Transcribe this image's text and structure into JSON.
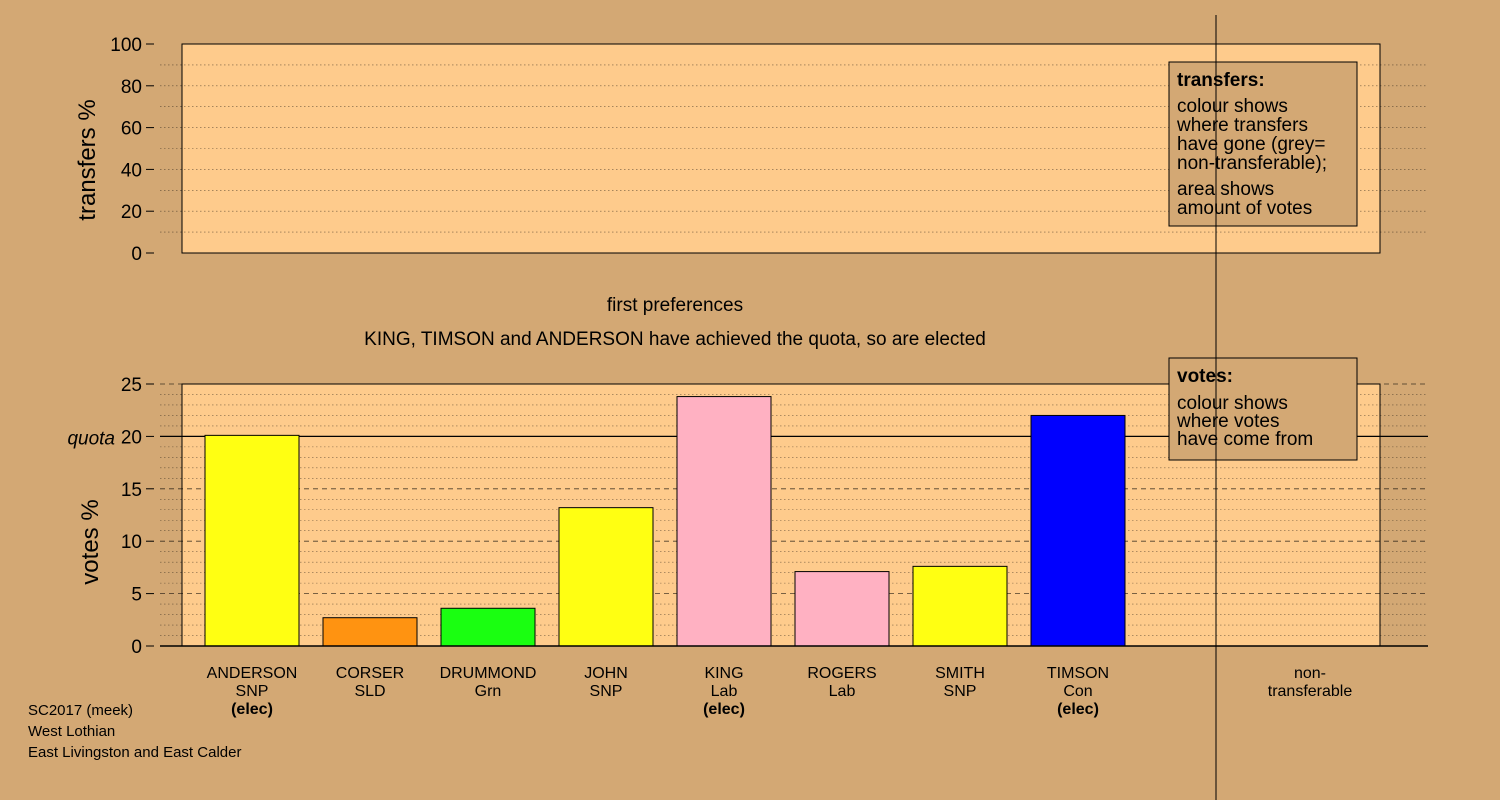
{
  "top_chart": {
    "ylabel": "transfers %",
    "ylim": [
      0,
      100
    ],
    "ticks": [
      "0",
      "20",
      "40",
      "60",
      "80",
      "100"
    ],
    "legend": {
      "title": "transfers:",
      "lines1": [
        "colour shows",
        "where transfers",
        "have gone (grey=",
        "non-transferable);"
      ],
      "lines2": [
        "area shows",
        "amount of votes"
      ]
    }
  },
  "captions": {
    "stage": "first preferences",
    "status": "KING, TIMSON and ANDERSON have achieved the quota, so are elected"
  },
  "chart_data": {
    "type": "bar",
    "ylabel": "votes %",
    "ylim": [
      0,
      25
    ],
    "ticks": [
      "0",
      "5",
      "10",
      "15",
      "20",
      "25"
    ],
    "quota_label": "quota",
    "quota": 20,
    "categories": [
      "ANDERSON",
      "CORSER",
      "DRUMMOND",
      "JOHN",
      "KING",
      "ROGERS",
      "SMITH",
      "TIMSON"
    ],
    "parties": [
      "SNP",
      "SLD",
      "Grn",
      "SNP",
      "Lab",
      "Lab",
      "SNP",
      "Con"
    ],
    "elected": [
      "(elec)",
      "",
      "",
      "",
      "(elec)",
      "",
      "",
      "(elec)"
    ],
    "values": [
      20.1,
      2.7,
      3.6,
      13.2,
      23.8,
      7.1,
      7.6,
      22.0
    ],
    "colors": [
      "#ffff12",
      "#ff9311",
      "#1aff11",
      "#ffff12",
      "#ffb1c2",
      "#ffb1c2",
      "#ffff12",
      "#0000ff"
    ],
    "nontransferable_label": [
      "non-",
      "transferable"
    ],
    "legend": {
      "title": "votes:",
      "lines": [
        "colour shows",
        "where votes",
        "have come from"
      ]
    }
  },
  "footer": [
    "SC2017 (meek)",
    "West Lothian",
    "East Livingston and East Calder"
  ],
  "colors": {
    "background": "#d3a874",
    "plot_area": "#fecb8c"
  }
}
